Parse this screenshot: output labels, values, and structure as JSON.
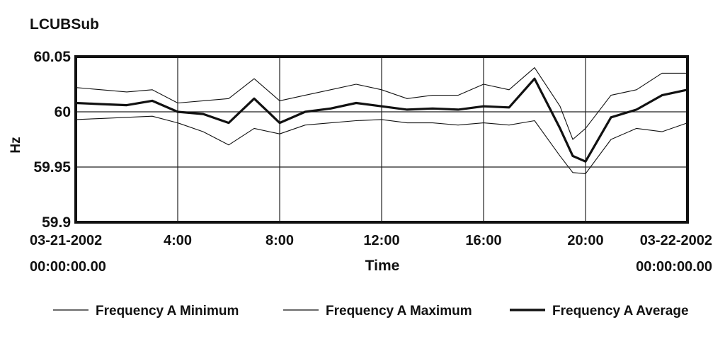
{
  "chart_data": {
    "type": "line",
    "title": "LCUBSub",
    "xlabel": "Time",
    "ylabel": "Hz",
    "ylim": [
      59.9,
      60.05
    ],
    "xlim_hours": [
      0,
      24
    ],
    "y_ticks": [
      {
        "value": 60.05,
        "label": "60.05"
      },
      {
        "value": 60.0,
        "label": "60"
      },
      {
        "value": 59.95,
        "label": "59.95"
      },
      {
        "value": 59.9,
        "label": "59.9"
      }
    ],
    "x_ticks": [
      {
        "hour": 0,
        "label": "03-21-2002",
        "sublabel": "00:00:00.00"
      },
      {
        "hour": 4,
        "label": "4:00",
        "sublabel": ""
      },
      {
        "hour": 8,
        "label": "8:00",
        "sublabel": ""
      },
      {
        "hour": 12,
        "label": "12:00",
        "sublabel": ""
      },
      {
        "hour": 16,
        "label": "16:00",
        "sublabel": ""
      },
      {
        "hour": 20,
        "label": "20:00",
        "sublabel": ""
      },
      {
        "hour": 24,
        "label": "03-22-2002",
        "sublabel": "00:00:00.00"
      }
    ],
    "grid": true,
    "legend_position": "bottom",
    "x_hours": [
      0,
      1,
      2,
      3,
      4,
      5,
      6,
      7,
      8,
      9,
      10,
      11,
      12,
      13,
      14,
      15,
      16,
      17,
      18,
      19,
      19.5,
      20,
      21,
      22,
      23,
      24
    ],
    "series": [
      {
        "name": "Frequency A Minimum",
        "line": "thin",
        "values": [
          59.993,
          59.994,
          59.995,
          59.996,
          59.99,
          59.982,
          59.97,
          59.985,
          59.98,
          59.988,
          59.99,
          59.992,
          59.993,
          59.99,
          59.99,
          59.988,
          59.99,
          59.988,
          59.992,
          59.96,
          59.945,
          59.944,
          59.975,
          59.985,
          59.982,
          59.99
        ]
      },
      {
        "name": "Frequency A Maximum",
        "line": "thin",
        "values": [
          60.022,
          60.02,
          60.018,
          60.02,
          60.008,
          60.01,
          60.012,
          60.03,
          60.01,
          60.015,
          60.02,
          60.025,
          60.02,
          60.012,
          60.015,
          60.015,
          60.025,
          60.02,
          60.04,
          60.005,
          59.975,
          59.985,
          60.015,
          60.02,
          60.035,
          60.035
        ]
      },
      {
        "name": "Frequency A Average",
        "line": "thick",
        "values": [
          60.008,
          60.007,
          60.006,
          60.01,
          60.0,
          59.998,
          59.99,
          60.012,
          59.99,
          60.0,
          60.003,
          60.008,
          60.005,
          60.002,
          60.003,
          60.002,
          60.005,
          60.004,
          60.03,
          59.985,
          59.96,
          59.955,
          59.995,
          60.002,
          60.015,
          60.02
        ]
      }
    ]
  }
}
